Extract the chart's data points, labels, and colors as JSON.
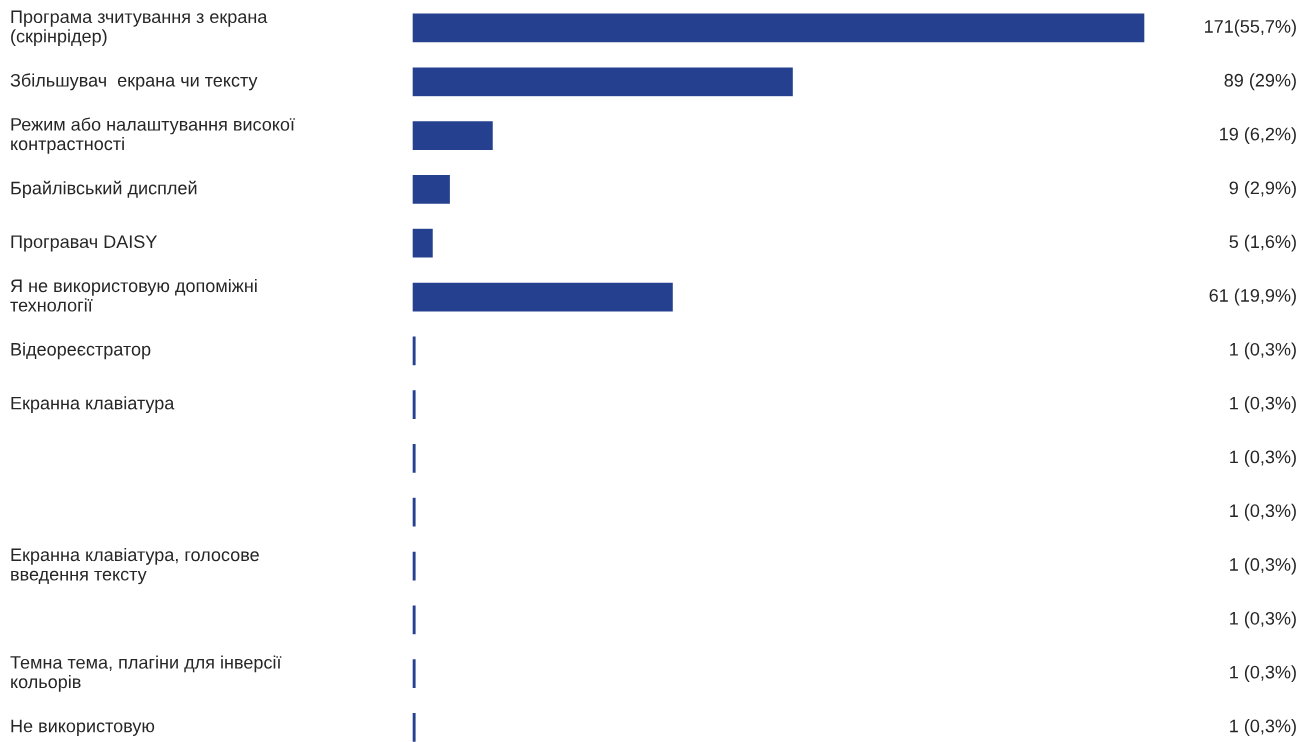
{
  "chart_data": {
    "type": "bar",
    "orientation": "horizontal",
    "relative": false,
    "categories": [
      "Програма зчитування з екрана\n(скрінрідер)",
      "Збільшувач  екрана чи тексту",
      "Режим або налаштування високої\nконтрастності",
      "Брайлівський дисплей",
      "Програвач DAISY",
      "Я не використовую допоміжні\nтехнології",
      "Відеореєстратор",
      "Екранна клавіатура",
      null,
      null,
      "Екранна клавіатура, голосове\nвведення тексту",
      null,
      "Темна тема, плагіни для інверсії\nкольорів",
      "Не використовую"
    ],
    "values": [
      171,
      89,
      19,
      9,
      5,
      61,
      1,
      1,
      1,
      1,
      1,
      1,
      1,
      1
    ],
    "value_labels": [
      "171(55,7%)",
      "89 (29%)",
      "19 (6,2%)",
      "9 (2,9%)",
      "5 (1,6%)",
      "61 (19,9%)",
      "1 (0,3%)",
      "1 (0,3%)",
      "1 (0,3%)",
      "1 (0,3%)",
      "1 (0,3%)",
      "1 (0,3%)",
      "1 (0,3%)",
      "1 (0,3%)"
    ],
    "color": "#25408f"
  }
}
